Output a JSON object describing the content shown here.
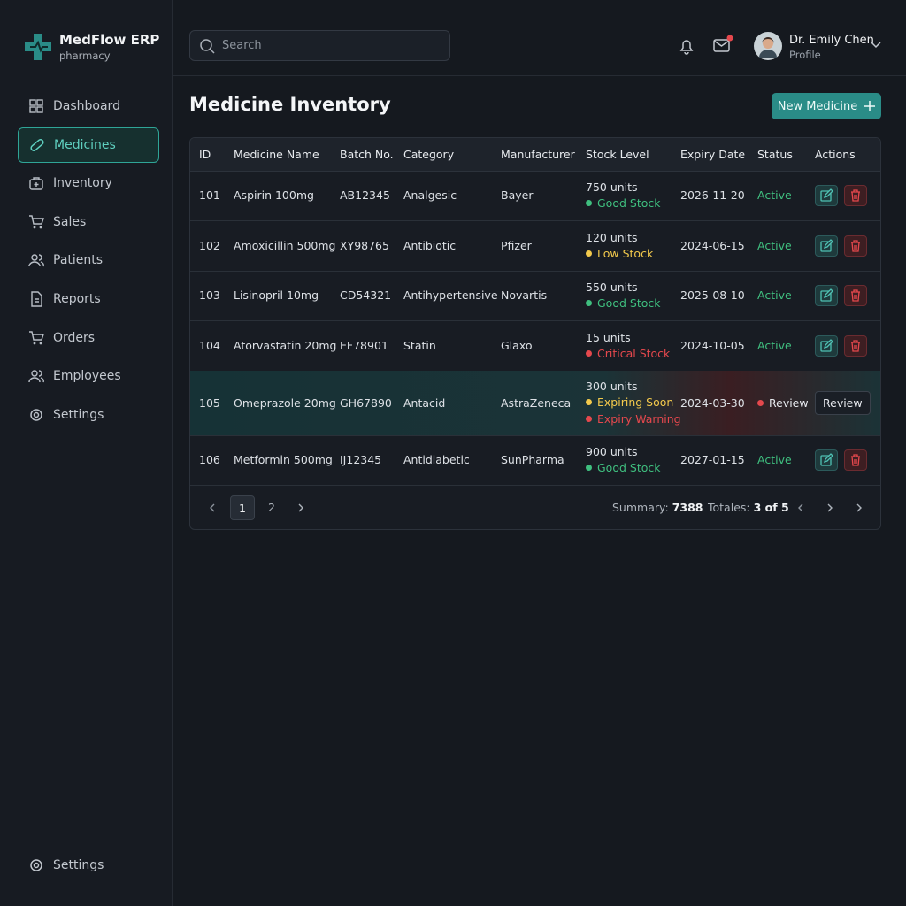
{
  "brand": {
    "name": "MedFlow ERP",
    "subtitle": "pharmacy"
  },
  "nav": [
    "Dashboard",
    "Medicines",
    "Inventory",
    "Sales",
    "Patients",
    "Reports",
    "Orders",
    "Employees",
    "Settings"
  ],
  "nav_footer": "Settings",
  "search": {
    "placeholder": "Search"
  },
  "user": {
    "name": "Dr. Emily Chen",
    "role": "Profile"
  },
  "page": {
    "title": "Medicine Inventory",
    "action": "New Medicine"
  },
  "table": {
    "columns": [
      "ID",
      "Medicine Name",
      "Batch No.",
      "Category",
      "Manufacturer",
      "Stock Level",
      "Expiry Date",
      "Status",
      "Actions"
    ],
    "rows": [
      {
        "id": "101",
        "name": "Aspirin 100mg",
        "batch": "AB12345",
        "category": "Analgesic",
        "manufacturer": "Bayer",
        "stock": "750 units",
        "stock_status": [
          {
            "label": "Good Stock",
            "color": "#3fbf7f"
          }
        ],
        "expiry": "2026-11-20",
        "status": {
          "label": "Active",
          "color": "#3fbf7f"
        }
      },
      {
        "id": "102",
        "name": "Amoxicillin 500mg",
        "batch": "XY98765",
        "category": "Antibiotic",
        "manufacturer": "Pfizer",
        "stock": "120 units",
        "stock_status": [
          {
            "label": "Low Stock",
            "color": "#f2c94c"
          }
        ],
        "expiry": "2024-06-15",
        "status": {
          "label": "Active",
          "color": "#3fbf7f"
        }
      },
      {
        "id": "103",
        "name": "Lisinopril 10mg",
        "batch": "CD54321",
        "category": "Antihypertensive",
        "manufacturer": "Novartis",
        "stock": "550 units",
        "stock_status": [
          {
            "label": "Good Stock",
            "color": "#3fbf7f"
          }
        ],
        "expiry": "2025-08-10",
        "status": {
          "label": "Active",
          "color": "#3fbf7f"
        }
      },
      {
        "id": "104",
        "name": "Atorvastatin 20mg",
        "batch": "EF78901",
        "category": "Statin",
        "manufacturer": "Glaxo",
        "stock": "15 units",
        "stock_status": [
          {
            "label": "Critical Stock",
            "color": "#e5484d"
          }
        ],
        "expiry": "2024-10-05",
        "status": {
          "label": "Active",
          "color": "#3fbf7f"
        }
      },
      {
        "id": "105",
        "name": "Omeprazole 20mg",
        "batch": "GH67890",
        "category": "Antacid",
        "manufacturer": "AstraZeneca",
        "stock": "300 units",
        "stock_status": [
          {
            "label": "Expiring Soon",
            "color": "#f2c94c"
          },
          {
            "label": "Expiry Warning",
            "color": "#e5484d"
          }
        ],
        "expiry": "2024-03-30",
        "status": {
          "label": "Review",
          "color": "#e6e9ee",
          "dot_color": "#e5484d"
        },
        "action": "Review"
      },
      {
        "id": "106",
        "name": "Metformin 500mg",
        "batch": "IJ12345",
        "category": "Antidiabetic",
        "manufacturer": "SunPharma",
        "stock": "900 units",
        "stock_status": [
          {
            "label": "Good Stock",
            "color": "#3fbf7f"
          }
        ],
        "expiry": "2027-01-15",
        "status": {
          "label": "Active",
          "color": "#3fbf7f"
        }
      }
    ]
  },
  "pagination": {
    "pages": [
      "1",
      "2"
    ],
    "summary_label": "Summary:",
    "summary_value": "7388",
    "totals_label": "Totales:",
    "totals_value": "3 of 5"
  }
}
